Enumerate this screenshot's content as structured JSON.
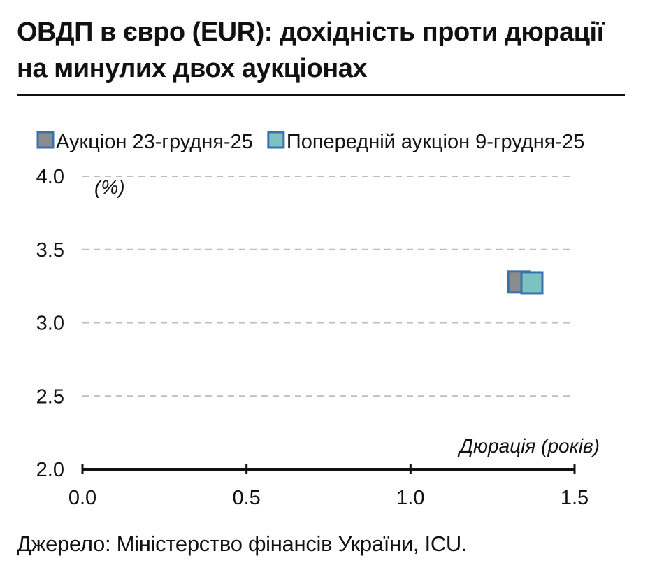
{
  "title": "ОВДП в євро (EUR): дохідність проти дюрації на минулих двох аукціонах",
  "source": "Джерело: Міністерство фінансів України, ICU.",
  "chart_data": {
    "type": "scatter",
    "title": "ОВДП в євро (EUR): дохідність проти дюрації на минулих двох аукціонах",
    "xlabel": "Дюрація (років)",
    "ylabel": "(%)",
    "xlim": [
      0.0,
      1.5
    ],
    "ylim": [
      2.0,
      4.0
    ],
    "x_ticks": [
      "0.0",
      "0.5",
      "1.0",
      "1.5"
    ],
    "y_ticks": [
      "2.0",
      "2.5",
      "3.0",
      "3.5",
      "4.0"
    ],
    "grid": "horizontal-dashed",
    "legend_position": "top-left",
    "series": [
      {
        "name": "Аукціон 23-грудня-25",
        "color": "#8c8c8c",
        "border": "#3a6fb0",
        "points": [
          {
            "x": 1.33,
            "y": 3.28
          }
        ]
      },
      {
        "name": "Попередній аукціон 9-грудня-25",
        "color": "#7cc3c0",
        "border": "#3a6fb0",
        "points": [
          {
            "x": 1.37,
            "y": 3.27
          }
        ]
      }
    ]
  }
}
